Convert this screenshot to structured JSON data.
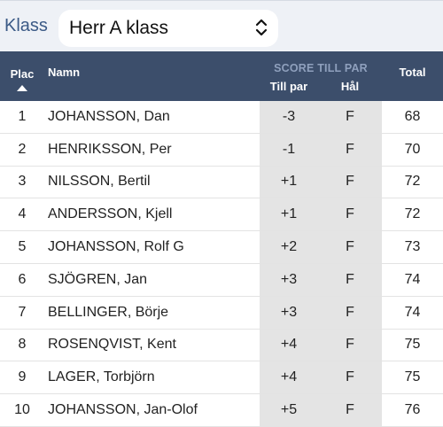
{
  "filter": {
    "label": "Klass",
    "selected": "Herr A klass"
  },
  "columns": {
    "plac": "Plac",
    "namn": "Namn",
    "group": "SCORE TILL PAR",
    "till_par": "Till par",
    "hal": "Hål",
    "total": "Total"
  },
  "rows": [
    {
      "plac": "1",
      "namn": "JOHANSSON, Dan",
      "till_par": "-3",
      "hal": "F",
      "total": "68"
    },
    {
      "plac": "2",
      "namn": "HENRIKSSON, Per",
      "till_par": "-1",
      "hal": "F",
      "total": "70"
    },
    {
      "plac": "3",
      "namn": "NILSSON, Bertil",
      "till_par": "+1",
      "hal": "F",
      "total": "72"
    },
    {
      "plac": "4",
      "namn": "ANDERSSON, Kjell",
      "till_par": "+1",
      "hal": "F",
      "total": "72"
    },
    {
      "plac": "5",
      "namn": "JOHANSSON, Rolf G",
      "till_par": "+2",
      "hal": "F",
      "total": "73"
    },
    {
      "plac": "6",
      "namn": "SJÖGREN, Jan",
      "till_par": "+3",
      "hal": "F",
      "total": "74"
    },
    {
      "plac": "7",
      "namn": "BELLINGER, Börje",
      "till_par": "+3",
      "hal": "F",
      "total": "74"
    },
    {
      "plac": "8",
      "namn": "ROSENQVIST, Kent",
      "till_par": "+4",
      "hal": "F",
      "total": "75"
    },
    {
      "plac": "9",
      "namn": "LAGER, Torbjörn",
      "till_par": "+4",
      "hal": "F",
      "total": "75"
    },
    {
      "plac": "10",
      "namn": "JOHANSSON, Jan-Olof",
      "till_par": "+5",
      "hal": "F",
      "total": "76"
    }
  ]
}
